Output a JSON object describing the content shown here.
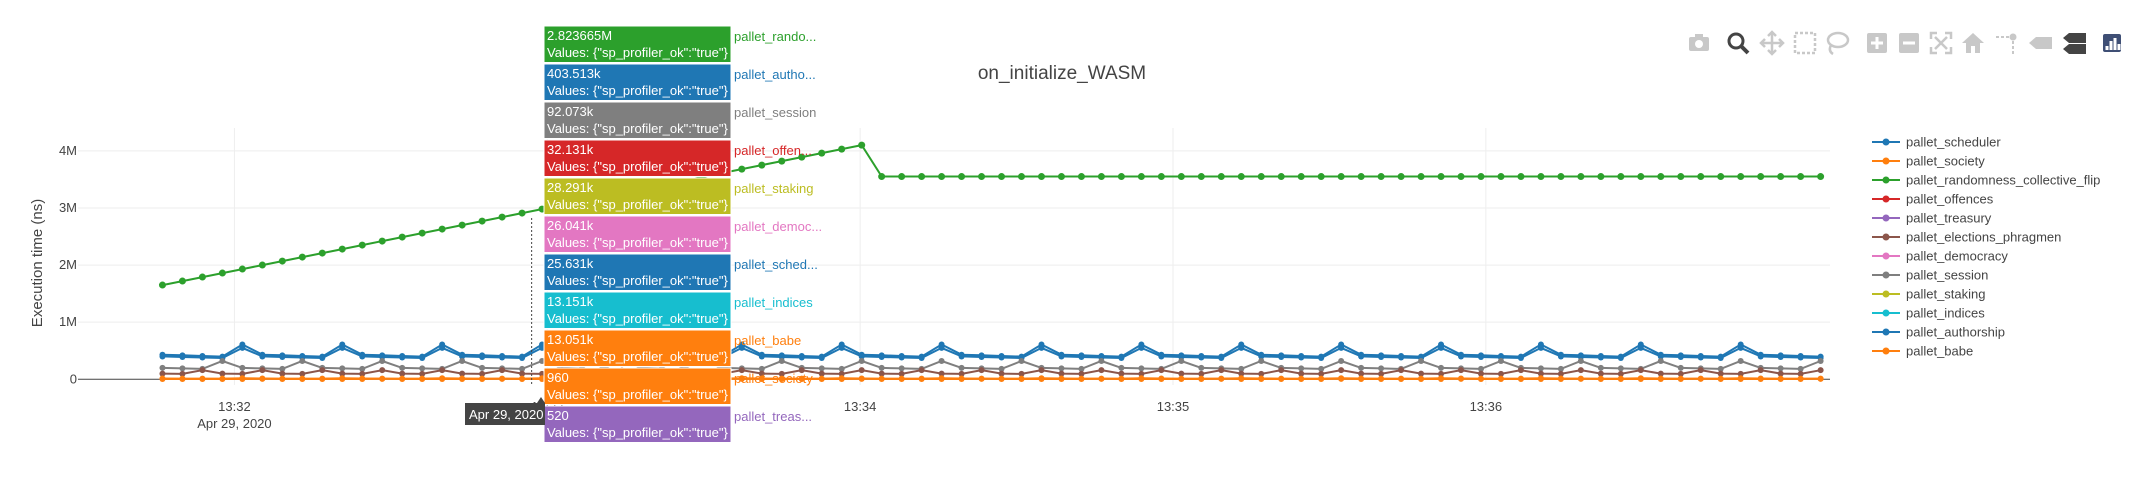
{
  "chart_data": {
    "type": "line",
    "title": "on_initialize_WASM",
    "ylabel": "Execution time (ns)",
    "xlabel": "",
    "y_ticks": [
      "0",
      "1M",
      "2M",
      "3M",
      "4M"
    ],
    "y_tick_values": [
      0,
      1000000,
      2000000,
      3000000,
      4000000
    ],
    "ylim": [
      -100000,
      4400000
    ],
    "x_ticks": [
      {
        "time": "13:32",
        "date": "Apr 29, 2020"
      },
      {
        "time": "13:33",
        "date": ""
      },
      {
        "time": "13:34",
        "date": ""
      },
      {
        "time": "13:35",
        "date": ""
      },
      {
        "time": "13:36",
        "date": ""
      }
    ],
    "xlim_minutes": [
      31.5,
      37.1
    ],
    "grid": true,
    "legend_position": "right",
    "series": [
      {
        "name": "pallet_scheduler",
        "color": "#1f77b4"
      },
      {
        "name": "pallet_society",
        "color": "#ff7f0e"
      },
      {
        "name": "pallet_randomness_collective_flip",
        "color": "#2ca02c"
      },
      {
        "name": "pallet_offences",
        "color": "#d62728"
      },
      {
        "name": "pallet_treasury",
        "color": "#9467bd"
      },
      {
        "name": "pallet_elections_phragmen",
        "color": "#8c564b"
      },
      {
        "name": "pallet_democracy",
        "color": "#e377c2"
      },
      {
        "name": "pallet_session",
        "color": "#7f7f7f"
      },
      {
        "name": "pallet_staking",
        "color": "#bcbd22"
      },
      {
        "name": "pallet_indices",
        "color": "#17becf"
      },
      {
        "name": "pallet_authorship",
        "color": "#1f77b4"
      },
      {
        "name": "pallet_babe",
        "color": "#ff7f0e"
      }
    ],
    "random_flip_line": {
      "start_minute": 31.77,
      "end_minute": 37.07,
      "ramp_start": 1650000,
      "ramp_end_minute": 34.05,
      "ramp_end": 4150000,
      "plateau": 3550000,
      "points": 84
    },
    "hover": {
      "x_label": "Apr 29, 2020",
      "x_minute": 32.95,
      "value_suffix": "Values: {\"sp_profiler_ok\":\"true\"}",
      "items": [
        {
          "value": "2.823665M",
          "name": "pallet_rando...",
          "color": "#2ca02c"
        },
        {
          "value": "403.513k",
          "name": "pallet_autho...",
          "color": "#1f77b4"
        },
        {
          "value": "92.073k",
          "name": "pallet_session",
          "color": "#7f7f7f"
        },
        {
          "value": "32.131k",
          "name": "pallet_offen...",
          "color": "#d62728"
        },
        {
          "value": "28.291k",
          "name": "pallet_staking",
          "color": "#bcbd22"
        },
        {
          "value": "26.041k",
          "name": "pallet_democ...",
          "color": "#e377c2"
        },
        {
          "value": "25.631k",
          "name": "pallet_sched...",
          "color": "#1f77b4"
        },
        {
          "value": "13.151k",
          "name": "pallet_indices",
          "color": "#17becf"
        },
        {
          "value": "13.051k",
          "name": "pallet_babe",
          "color": "#ff7f0e"
        },
        {
          "value": "960",
          "name": "pallet_society",
          "color": "#ff7f0e"
        },
        {
          "value": "520",
          "name": "pallet_treas...",
          "color": "#9467bd"
        }
      ]
    }
  },
  "modebar": [
    {
      "icon": "camera-icon"
    },
    {
      "icon": "zoom-icon",
      "active": true
    },
    {
      "icon": "pan-icon"
    },
    {
      "icon": "box-select-icon"
    },
    {
      "icon": "lasso-select-icon"
    },
    {
      "icon": "zoom-in-icon"
    },
    {
      "icon": "zoom-out-icon"
    },
    {
      "icon": "autoscale-icon"
    },
    {
      "icon": "reset-axes-icon"
    },
    {
      "icon": "spike-lines-icon"
    },
    {
      "icon": "hover-closest-icon"
    },
    {
      "icon": "hover-compare-icon"
    },
    {
      "icon": "plotly-logo-icon"
    }
  ]
}
